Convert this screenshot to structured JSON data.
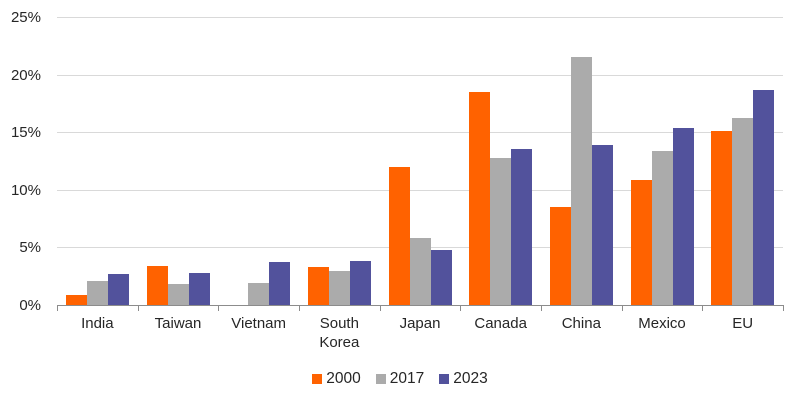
{
  "chart_data": {
    "type": "bar",
    "title": "",
    "xlabel": "",
    "ylabel": "",
    "categories": [
      "India",
      "Taiwan",
      "Vietnam",
      "South Korea",
      "Japan",
      "Canada",
      "China",
      "Mexico",
      "EU"
    ],
    "series": [
      {
        "name": "2000",
        "color": "#ff6200",
        "values": [
          0.9,
          3.4,
          0,
          3.3,
          12.0,
          18.5,
          8.5,
          10.9,
          15.1
        ]
      },
      {
        "name": "2017",
        "color": "#ababab",
        "values": [
          2.1,
          1.8,
          1.9,
          3.0,
          5.8,
          12.8,
          21.6,
          13.4,
          16.3
        ]
      },
      {
        "name": "2023",
        "color": "#52529c",
        "values": [
          2.7,
          2.8,
          3.7,
          3.8,
          4.8,
          13.6,
          13.9,
          15.4,
          18.7
        ]
      }
    ],
    "y_ticks": [
      0,
      5,
      10,
      15,
      20,
      25
    ],
    "y_tick_labels": [
      "0%",
      "5%",
      "10%",
      "15%",
      "20%",
      "25%"
    ],
    "ylim": [
      0,
      25
    ],
    "grid": "horizontal",
    "legend_position": "bottom-center",
    "colors": {
      "text": "#262626",
      "gridline": "#d9d9d9",
      "axis": "#8c8c8c",
      "background": "#ffffff"
    }
  }
}
